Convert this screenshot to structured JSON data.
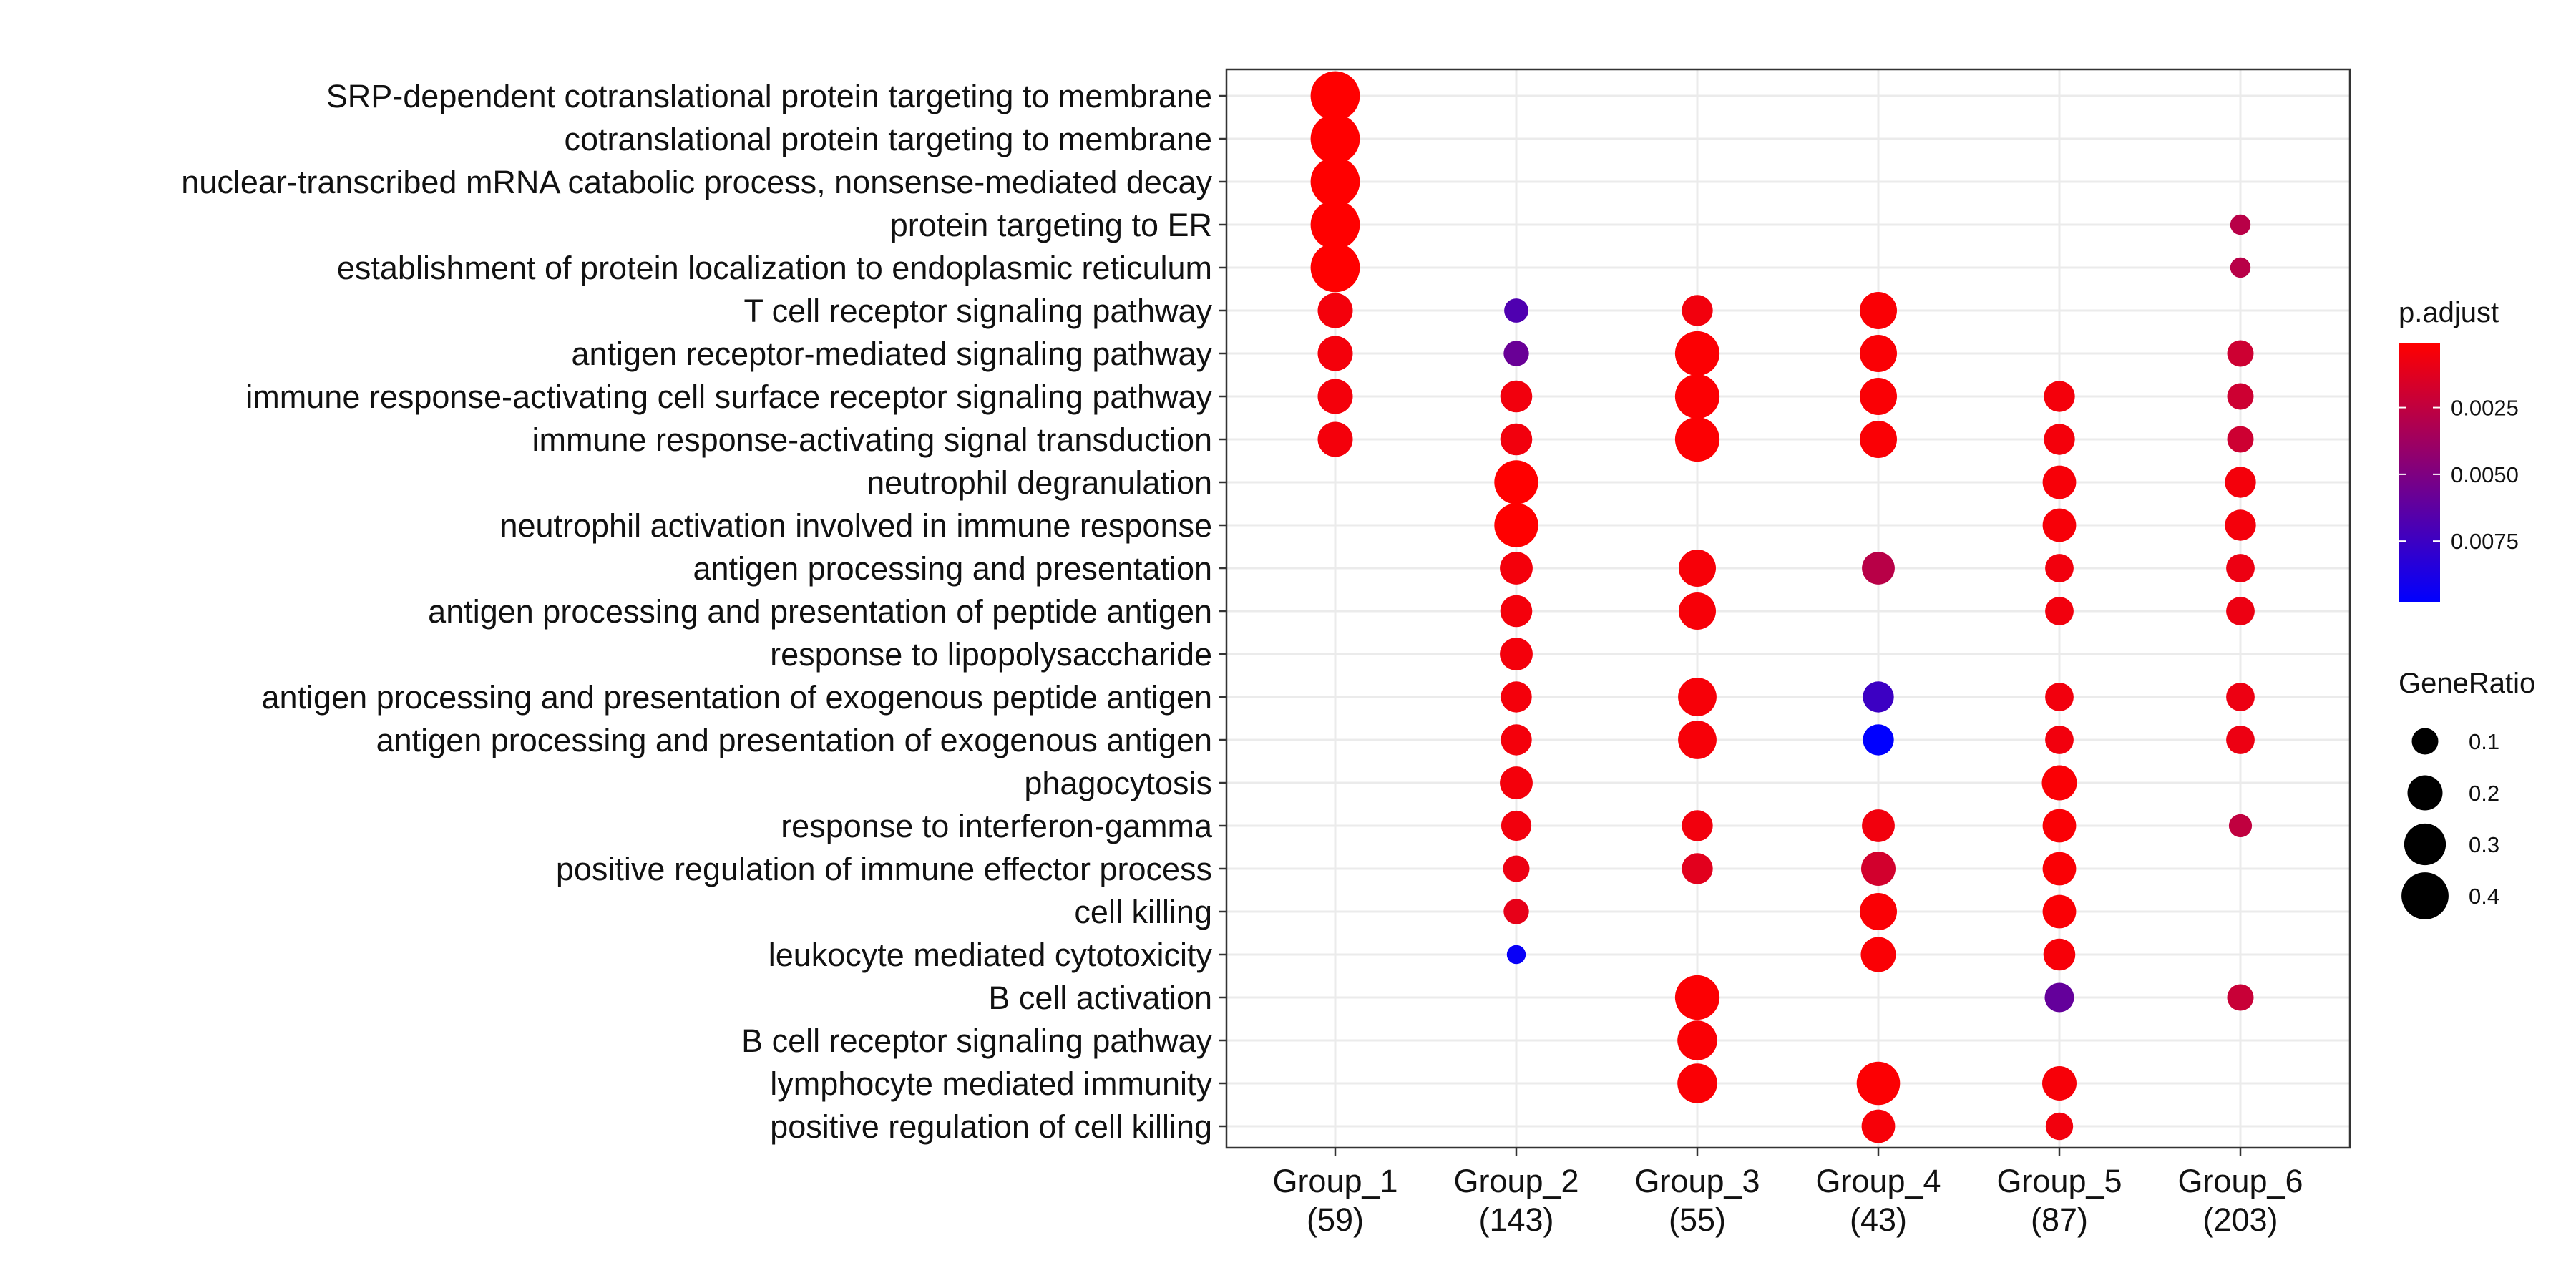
{
  "chart_data": {
    "type": "scatter",
    "subtype": "dotplot",
    "title": "",
    "xlabel": "",
    "ylabel": "",
    "grid": true,
    "legend_position": "right",
    "groups": [
      {
        "name": "Group_1",
        "count": "(59)"
      },
      {
        "name": "Group_2",
        "count": "(143)"
      },
      {
        "name": "Group_3",
        "count": "(55)"
      },
      {
        "name": "Group_4",
        "count": "(43)"
      },
      {
        "name": "Group_5",
        "count": "(87)"
      },
      {
        "name": "Group_6",
        "count": "(203)"
      }
    ],
    "terms": [
      "SRP-dependent cotranslational protein targeting to membrane",
      "cotranslational protein targeting to membrane",
      "nuclear-transcribed mRNA catabolic process, nonsense-mediated decay",
      "protein targeting to ER",
      "establishment of protein localization to endoplasmic reticulum",
      "T cell receptor signaling pathway",
      "antigen receptor-mediated signaling pathway",
      "immune response-activating cell surface receptor signaling pathway",
      "immune response-activating signal transduction",
      "neutrophil degranulation",
      "neutrophil activation involved in immune response",
      "antigen processing and presentation",
      "antigen processing and presentation of peptide antigen",
      "response to lipopolysaccharide",
      "antigen processing and presentation of exogenous peptide antigen",
      "antigen processing and presentation of exogenous antigen",
      "phagocytosis",
      "response to interferon-gamma",
      "positive regulation of immune effector process",
      "cell killing",
      "leukocyte mediated cytotoxicity",
      "B cell activation",
      "B cell receptor signaling pathway",
      "lymphocyte mediated immunity",
      "positive regulation of cell killing"
    ],
    "points": [
      {
        "group": 0,
        "term": 0,
        "gene_ratio": 0.44,
        "p_adjust": 0.0001
      },
      {
        "group": 0,
        "term": 1,
        "gene_ratio": 0.44,
        "p_adjust": 0.0001
      },
      {
        "group": 0,
        "term": 2,
        "gene_ratio": 0.44,
        "p_adjust": 0.0001
      },
      {
        "group": 0,
        "term": 3,
        "gene_ratio": 0.44,
        "p_adjust": 0.0001
      },
      {
        "group": 0,
        "term": 4,
        "gene_ratio": 0.44,
        "p_adjust": 0.0001
      },
      {
        "group": 0,
        "term": 5,
        "gene_ratio": 0.2,
        "p_adjust": 0.0005
      },
      {
        "group": 0,
        "term": 6,
        "gene_ratio": 0.2,
        "p_adjust": 0.0005
      },
      {
        "group": 0,
        "term": 7,
        "gene_ratio": 0.2,
        "p_adjust": 0.0005
      },
      {
        "group": 0,
        "term": 8,
        "gene_ratio": 0.2,
        "p_adjust": 0.0005
      },
      {
        "group": 1,
        "term": 5,
        "gene_ratio": 0.08,
        "p_adjust": 0.0068
      },
      {
        "group": 1,
        "term": 6,
        "gene_ratio": 0.09,
        "p_adjust": 0.0058
      },
      {
        "group": 1,
        "term": 7,
        "gene_ratio": 0.16,
        "p_adjust": 0.0006
      },
      {
        "group": 1,
        "term": 8,
        "gene_ratio": 0.16,
        "p_adjust": 0.0006
      },
      {
        "group": 1,
        "term": 9,
        "gene_ratio": 0.34,
        "p_adjust": 0.0001
      },
      {
        "group": 1,
        "term": 10,
        "gene_ratio": 0.34,
        "p_adjust": 0.0001
      },
      {
        "group": 1,
        "term": 11,
        "gene_ratio": 0.17,
        "p_adjust": 0.0005
      },
      {
        "group": 1,
        "term": 12,
        "gene_ratio": 0.16,
        "p_adjust": 0.0005
      },
      {
        "group": 1,
        "term": 13,
        "gene_ratio": 0.17,
        "p_adjust": 0.0005
      },
      {
        "group": 1,
        "term": 14,
        "gene_ratio": 0.15,
        "p_adjust": 0.0005
      },
      {
        "group": 1,
        "term": 15,
        "gene_ratio": 0.15,
        "p_adjust": 0.0005
      },
      {
        "group": 1,
        "term": 16,
        "gene_ratio": 0.17,
        "p_adjust": 0.0005
      },
      {
        "group": 1,
        "term": 17,
        "gene_ratio": 0.14,
        "p_adjust": 0.0006
      },
      {
        "group": 1,
        "term": 18,
        "gene_ratio": 0.1,
        "p_adjust": 0.0008
      },
      {
        "group": 1,
        "term": 19,
        "gene_ratio": 0.09,
        "p_adjust": 0.001
      },
      {
        "group": 1,
        "term": 20,
        "gene_ratio": 0.04,
        "p_adjust": 0.0095
      },
      {
        "group": 2,
        "term": 5,
        "gene_ratio": 0.15,
        "p_adjust": 0.0006
      },
      {
        "group": 2,
        "term": 6,
        "gene_ratio": 0.35,
        "p_adjust": 0.0002
      },
      {
        "group": 2,
        "term": 7,
        "gene_ratio": 0.35,
        "p_adjust": 0.0002
      },
      {
        "group": 2,
        "term": 8,
        "gene_ratio": 0.35,
        "p_adjust": 0.0002
      },
      {
        "group": 2,
        "term": 11,
        "gene_ratio": 0.23,
        "p_adjust": 0.0004
      },
      {
        "group": 2,
        "term": 12,
        "gene_ratio": 0.23,
        "p_adjust": 0.0004
      },
      {
        "group": 2,
        "term": 14,
        "gene_ratio": 0.25,
        "p_adjust": 0.0004
      },
      {
        "group": 2,
        "term": 15,
        "gene_ratio": 0.25,
        "p_adjust": 0.0004
      },
      {
        "group": 2,
        "term": 17,
        "gene_ratio": 0.15,
        "p_adjust": 0.0006
      },
      {
        "group": 2,
        "term": 18,
        "gene_ratio": 0.15,
        "p_adjust": 0.0012
      },
      {
        "group": 2,
        "term": 21,
        "gene_ratio": 0.35,
        "p_adjust": 0.0002
      },
      {
        "group": 2,
        "term": 22,
        "gene_ratio": 0.27,
        "p_adjust": 0.0003
      },
      {
        "group": 2,
        "term": 23,
        "gene_ratio": 0.27,
        "p_adjust": 0.0003
      },
      {
        "group": 3,
        "term": 5,
        "gene_ratio": 0.23,
        "p_adjust": 0.0003
      },
      {
        "group": 3,
        "term": 6,
        "gene_ratio": 0.23,
        "p_adjust": 0.0003
      },
      {
        "group": 3,
        "term": 7,
        "gene_ratio": 0.23,
        "p_adjust": 0.0003
      },
      {
        "group": 3,
        "term": 8,
        "gene_ratio": 0.23,
        "p_adjust": 0.0003
      },
      {
        "group": 3,
        "term": 11,
        "gene_ratio": 0.17,
        "p_adjust": 0.0028
      },
      {
        "group": 3,
        "term": 14,
        "gene_ratio": 0.15,
        "p_adjust": 0.0075
      },
      {
        "group": 3,
        "term": 15,
        "gene_ratio": 0.15,
        "p_adjust": 0.0098
      },
      {
        "group": 3,
        "term": 17,
        "gene_ratio": 0.17,
        "p_adjust": 0.0006
      },
      {
        "group": 3,
        "term": 18,
        "gene_ratio": 0.19,
        "p_adjust": 0.0018
      },
      {
        "group": 3,
        "term": 19,
        "gene_ratio": 0.23,
        "p_adjust": 0.0003
      },
      {
        "group": 3,
        "term": 20,
        "gene_ratio": 0.2,
        "p_adjust": 0.0003
      },
      {
        "group": 3,
        "term": 23,
        "gene_ratio": 0.33,
        "p_adjust": 0.0002
      },
      {
        "group": 3,
        "term": 24,
        "gene_ratio": 0.18,
        "p_adjust": 0.0004
      },
      {
        "group": 4,
        "term": 7,
        "gene_ratio": 0.15,
        "p_adjust": 0.0005
      },
      {
        "group": 4,
        "term": 8,
        "gene_ratio": 0.15,
        "p_adjust": 0.0005
      },
      {
        "group": 4,
        "term": 9,
        "gene_ratio": 0.18,
        "p_adjust": 0.0004
      },
      {
        "group": 4,
        "term": 10,
        "gene_ratio": 0.18,
        "p_adjust": 0.0004
      },
      {
        "group": 4,
        "term": 11,
        "gene_ratio": 0.12,
        "p_adjust": 0.0006
      },
      {
        "group": 4,
        "term": 12,
        "gene_ratio": 0.12,
        "p_adjust": 0.0006
      },
      {
        "group": 4,
        "term": 14,
        "gene_ratio": 0.12,
        "p_adjust": 0.0006
      },
      {
        "group": 4,
        "term": 15,
        "gene_ratio": 0.12,
        "p_adjust": 0.0006
      },
      {
        "group": 4,
        "term": 16,
        "gene_ratio": 0.2,
        "p_adjust": 0.0003
      },
      {
        "group": 4,
        "term": 17,
        "gene_ratio": 0.18,
        "p_adjust": 0.0003
      },
      {
        "group": 4,
        "term": 18,
        "gene_ratio": 0.18,
        "p_adjust": 0.0003
      },
      {
        "group": 4,
        "term": 19,
        "gene_ratio": 0.18,
        "p_adjust": 0.0003
      },
      {
        "group": 4,
        "term": 20,
        "gene_ratio": 0.16,
        "p_adjust": 0.0004
      },
      {
        "group": 4,
        "term": 21,
        "gene_ratio": 0.13,
        "p_adjust": 0.006
      },
      {
        "group": 4,
        "term": 23,
        "gene_ratio": 0.19,
        "p_adjust": 0.0004
      },
      {
        "group": 4,
        "term": 24,
        "gene_ratio": 0.11,
        "p_adjust": 0.0006
      },
      {
        "group": 5,
        "term": 3,
        "gene_ratio": 0.05,
        "p_adjust": 0.0028
      },
      {
        "group": 5,
        "term": 4,
        "gene_ratio": 0.05,
        "p_adjust": 0.0028
      },
      {
        "group": 5,
        "term": 6,
        "gene_ratio": 0.1,
        "p_adjust": 0.002
      },
      {
        "group": 5,
        "term": 7,
        "gene_ratio": 0.1,
        "p_adjust": 0.002
      },
      {
        "group": 5,
        "term": 8,
        "gene_ratio": 0.1,
        "p_adjust": 0.002
      },
      {
        "group": 5,
        "term": 9,
        "gene_ratio": 0.15,
        "p_adjust": 0.0005
      },
      {
        "group": 5,
        "term": 10,
        "gene_ratio": 0.15,
        "p_adjust": 0.0005
      },
      {
        "group": 5,
        "term": 11,
        "gene_ratio": 0.12,
        "p_adjust": 0.0008
      },
      {
        "group": 5,
        "term": 12,
        "gene_ratio": 0.12,
        "p_adjust": 0.0008
      },
      {
        "group": 5,
        "term": 14,
        "gene_ratio": 0.12,
        "p_adjust": 0.0008
      },
      {
        "group": 5,
        "term": 15,
        "gene_ratio": 0.12,
        "p_adjust": 0.0008
      },
      {
        "group": 5,
        "term": 17,
        "gene_ratio": 0.07,
        "p_adjust": 0.0025
      },
      {
        "group": 5,
        "term": 21,
        "gene_ratio": 0.1,
        "p_adjust": 0.0022
      }
    ],
    "color_legend": {
      "title": "p.adjust",
      "scale_min": 0.0001,
      "scale_max": 0.0098,
      "low_color": "#ff0000",
      "high_color": "#0000ff",
      "ticks": [
        {
          "value": 0.0025,
          "label": "0.0025"
        },
        {
          "value": 0.005,
          "label": "0.0050"
        },
        {
          "value": 0.0075,
          "label": "0.0075"
        }
      ]
    },
    "size_legend": {
      "title": "GeneRatio",
      "ticks": [
        {
          "value": 0.1,
          "label": "0.1"
        },
        {
          "value": 0.2,
          "label": "0.2"
        },
        {
          "value": 0.3,
          "label": "0.3"
        },
        {
          "value": 0.4,
          "label": "0.4"
        }
      ]
    },
    "colors": {
      "panel_border": "#333333",
      "grid": "#ebebeb",
      "text": "#111111",
      "axis_tick": "#333333"
    }
  }
}
